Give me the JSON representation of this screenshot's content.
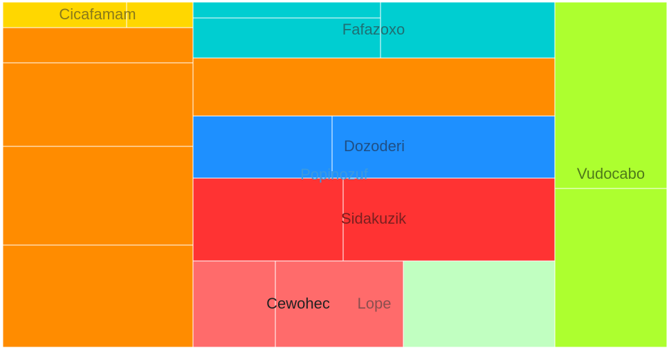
{
  "chart_data": {
    "type": "treemap",
    "title": "",
    "groups": [
      {
        "name": "Cicafamam",
        "color": "#ffd700",
        "label_color": "#8a7a1a"
      },
      {
        "name": "Fafazoxo",
        "color": "#00ced1",
        "label_color": "#1f6f73"
      },
      {
        "name": "Popinozuf",
        "color": "#ff8c00",
        "label_color": "#3c9ae0"
      },
      {
        "name": "Dozoderi",
        "color": "#1e90ff",
        "label_color": "#1f4f85"
      },
      {
        "name": "Sidakuzik",
        "color": "#ff3333",
        "label_color": "#7a2020"
      },
      {
        "name": "Cewohec",
        "color": "#ff6b6b",
        "label_color": "#222222"
      },
      {
        "name": "Lope",
        "color": "#c1ffc1",
        "label_color": "#8b4f4f"
      },
      {
        "name": "Vudocabo",
        "color": "#adff2f",
        "label_color": "#4f7a1a"
      }
    ]
  }
}
